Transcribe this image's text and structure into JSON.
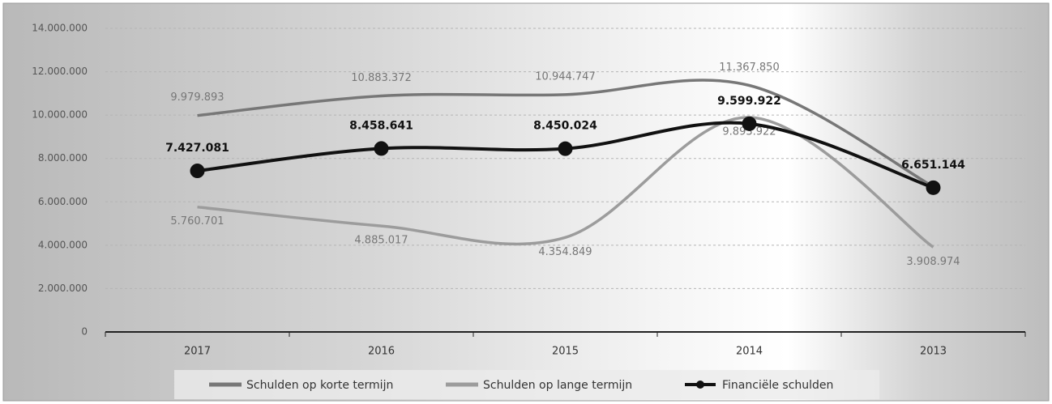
{
  "chart_data": {
    "type": "line",
    "categories": [
      "2017",
      "2016",
      "2015",
      "2014",
      "2013"
    ],
    "series": [
      {
        "name": "Schulden op korte termijn",
        "color": "#777777",
        "values": [
          9979893,
          10883372,
          10944747,
          11367850,
          6700000
        ],
        "value_labels": [
          "9.979.893",
          "10.883.372",
          "10.944.747",
          "11.367.850",
          null
        ]
      },
      {
        "name": "Schulden op lange termijn",
        "color": "#9c9c9c",
        "values": [
          5760701,
          4885017,
          4354849,
          9893922,
          3908974
        ],
        "value_labels": [
          "5.760.701",
          "4.885.017",
          "4.354.849",
          "9.893.922",
          "3.908.974"
        ]
      },
      {
        "name": "Financiële schulden",
        "color": "#111111",
        "values": [
          7427081,
          8458641,
          8450024,
          9599922,
          6651144
        ],
        "value_labels": [
          "7.427.081",
          "8.458.641",
          "8.450.024",
          "9.599.922",
          "6.651.144"
        ]
      }
    ],
    "ylim": [
      0,
      14000000
    ],
    "yticks": [
      0,
      {
        "value": 2000000,
        "label": "2.000.000"
      },
      {
        "value": 4000000,
        "label": "4.000.000"
      },
      {
        "value": 6000000,
        "label": "6.000.000"
      },
      {
        "value": 8000000,
        "label": "8.000.000"
      },
      {
        "value": 10000000,
        "label": "10.000.000"
      },
      {
        "value": 12000000,
        "label": "12.000.000"
      },
      {
        "value": 14000000,
        "label": "14.000.000"
      }
    ],
    "grid": true,
    "legend": "bottom"
  }
}
